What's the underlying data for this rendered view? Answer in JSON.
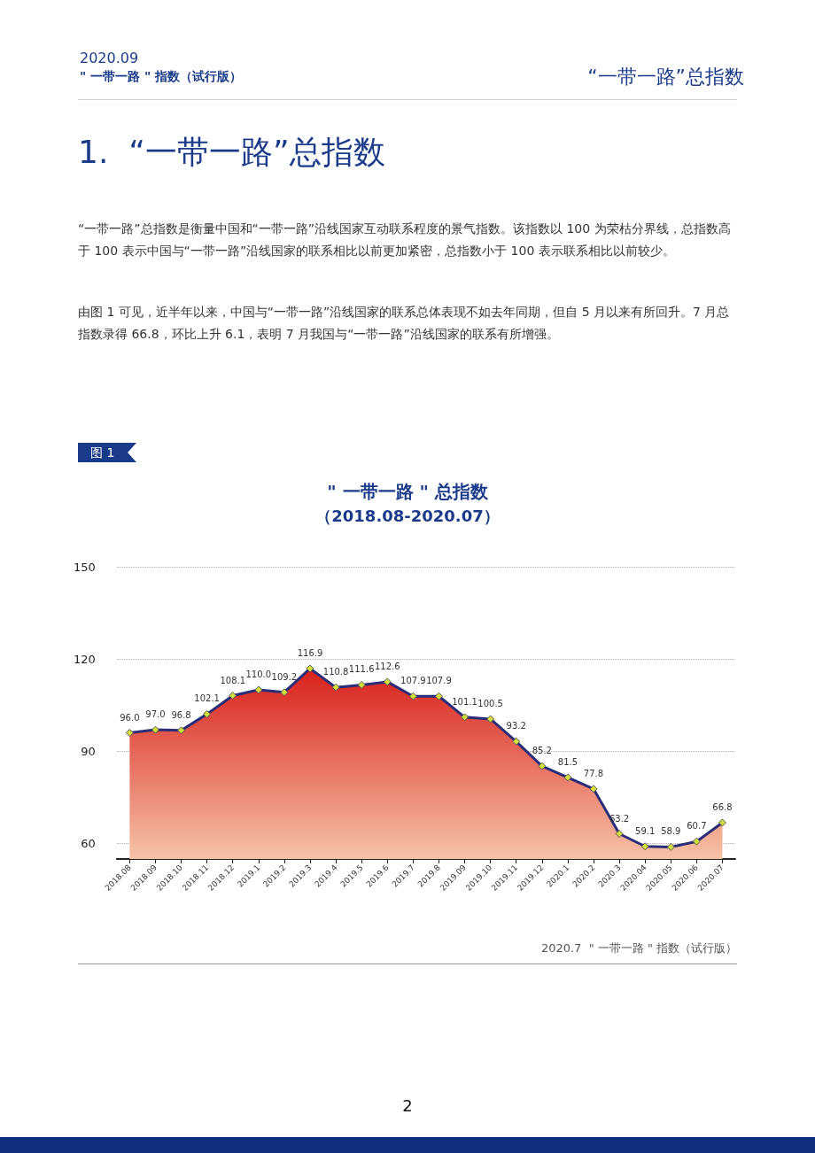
{
  "chart_data": {
    "type": "area",
    "title": "\" 一带一路 \" 总指数",
    "subtitle": "（2018.08-2020.07）",
    "categories": [
      "2018.08",
      "2018.09",
      "2018.10",
      "2018.11",
      "2018.12",
      "2019.1",
      "2019.2",
      "2019.3",
      "2019.4",
      "2019.5",
      "2019.6",
      "2019.7",
      "2019.8",
      "2019.09",
      "2019.10",
      "2019.11",
      "2019.12",
      "2020.1",
      "2020.2",
      "2020.3",
      "2020.04",
      "2020.05",
      "2020.06",
      "2020.07"
    ],
    "series": [
      {
        "color": "#2a2d78",
        "values": [
          96.0,
          97.0,
          96.8,
          102.1,
          108.1,
          110.0,
          109.2,
          116.9,
          110.8,
          111.6,
          112.6,
          107.9,
          107.9,
          101.1,
          100.5,
          93.2,
          85.2,
          81.5,
          77.8,
          63.2,
          59.1,
          58.9,
          60.7,
          66.8
        ],
        "value_labels": [
          "96.0",
          "97.0",
          "96.8",
          "102.1",
          "108.1",
          "110.0",
          "109.2",
          "116.9",
          "110.8",
          "111.6",
          "112.6",
          "107.9",
          "107.9",
          "101.1",
          "100.5",
          "93.2",
          "85.2",
          "81.5",
          "77.8",
          "63.2",
          "59.1",
          "58.9",
          "60.7",
          "66.8"
        ]
      }
    ],
    "ylim": [
      55,
      150
    ],
    "yticks": [
      60,
      90,
      120,
      150
    ],
    "grid": "y",
    "marker": "diamond",
    "line_style": "solid",
    "annotations": [
      "2020.09",
      "\" 一带一路 \" 指数（试行版）",
      "“一带一路”总指数",
      "1.  “一带一路”总指数",
      "“一带一路”总指数是衡量中国和“一带一路”沿线国家互动联系程度的景气指数。该指数以 100 为荣枯分界线，总指数高于 100 表示中国与“一带一路”沿线国家的联系相比以前更加紧密，总指数小于 100 表示联系相比以前较少。",
      "由图 1 可见，近半年以来，中国与“一带一路”沿线国家的联系总体表现不如去年同期，但自 5 月以来有所回升。7 月总指数录得 66.8，环比上升 6.1，表明 7 月我国与“一带一路”沿线国家的联系有所增强。",
      "图 1",
      "2020.7  \" 一带一路 \" 指数（试行版）",
      "2"
    ]
  }
}
